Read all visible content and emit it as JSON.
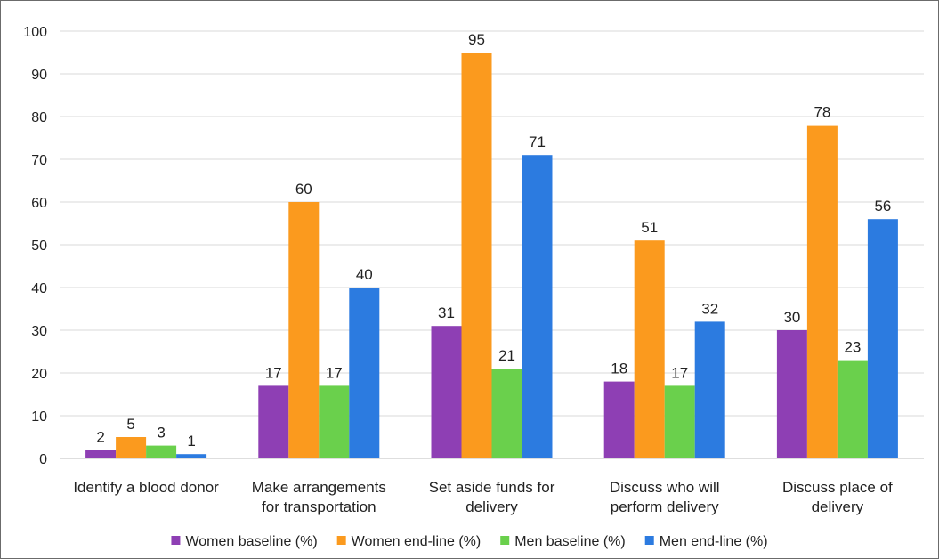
{
  "chart_data": {
    "type": "bar",
    "title": "",
    "xlabel": "",
    "ylabel": "",
    "ylim": [
      0,
      100
    ],
    "yticks": [
      0,
      10,
      20,
      30,
      40,
      50,
      60,
      70,
      80,
      90,
      100
    ],
    "grid": true,
    "legend_position": "bottom",
    "categories": [
      [
        "Identify a blood donor"
      ],
      [
        "Make arrangements",
        "for transportation"
      ],
      [
        "Set aside funds for",
        "delivery"
      ],
      [
        "Discuss who will",
        "perform delivery"
      ],
      [
        "Discuss place of",
        "delivery"
      ]
    ],
    "series": [
      {
        "name": "Women baseline (%)",
        "color": "#8e3fb4",
        "values": [
          2,
          17,
          31,
          18,
          30
        ]
      },
      {
        "name": "Women end-line (%)",
        "color": "#fb9a1e",
        "values": [
          5,
          60,
          95,
          51,
          78
        ]
      },
      {
        "name": "Men baseline (%)",
        "color": "#6ad04c",
        "values": [
          3,
          17,
          21,
          17,
          23
        ]
      },
      {
        "name": "Men end-line (%)",
        "color": "#2c7be0",
        "values": [
          1,
          40,
          71,
          32,
          56
        ]
      }
    ]
  }
}
